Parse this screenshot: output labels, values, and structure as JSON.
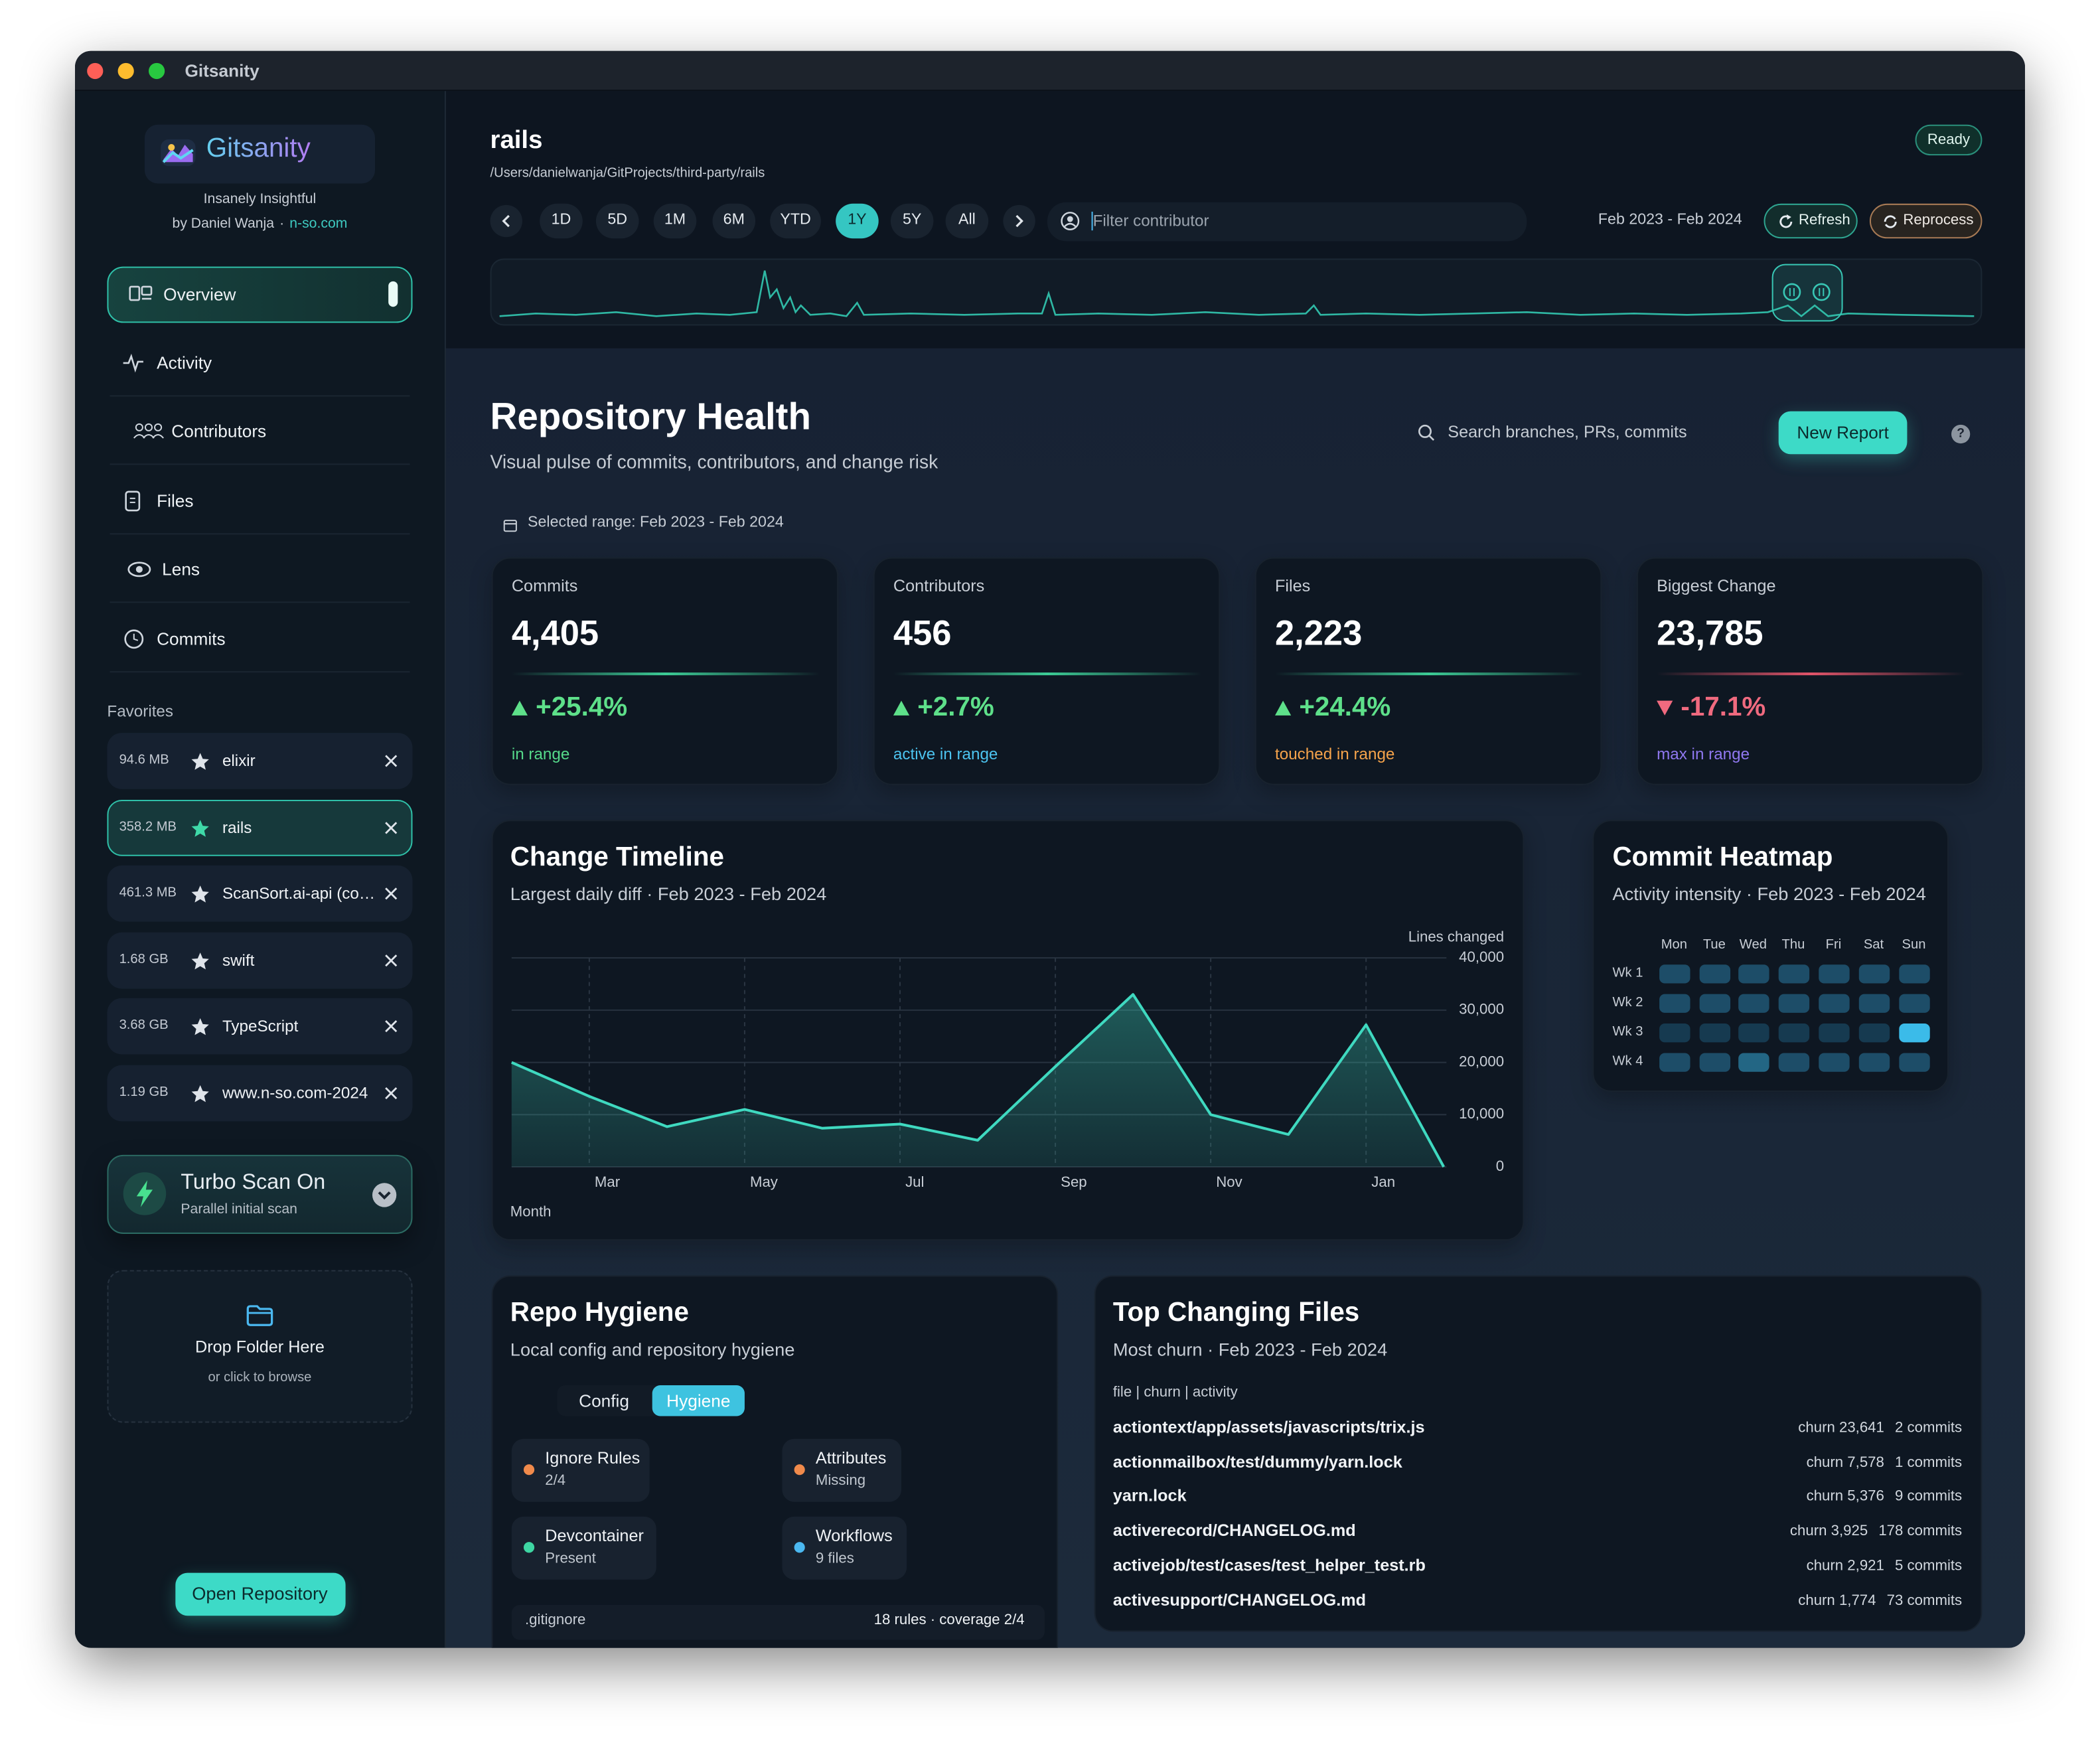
{
  "window": {
    "title": "Gitsanity"
  },
  "sidebar": {
    "brand": "Gitsanity",
    "tagline": "Insanely Insightful",
    "author": "by Daniel Wanja",
    "separator": "·",
    "site": "n-so.com",
    "nav": [
      "Overview",
      "Activity",
      "Contributors",
      "Files",
      "Lens",
      "Commits"
    ],
    "active_nav": 0,
    "favorites_title": "Favorites",
    "favorites": [
      {
        "size": "94.6 MB",
        "name": "elixir"
      },
      {
        "size": "358.2 MB",
        "name": "rails"
      },
      {
        "size": "461.3 MB",
        "name": "ScanSort.ai-api (co…"
      },
      {
        "size": "1.68 GB",
        "name": "swift"
      },
      {
        "size": "3.68 GB",
        "name": "TypeScript"
      },
      {
        "size": "1.19 GB",
        "name": "www.n-so.com-2024"
      }
    ],
    "active_favorite": 1,
    "turbo": {
      "title": "Turbo Scan On",
      "subtitle": "Parallel initial scan"
    },
    "drop": {
      "title": "Drop Folder Here",
      "subtitle": "or click to browse"
    },
    "open_button": "Open Repository"
  },
  "header": {
    "repo": "rails",
    "path": "/Users/danielwanja/GitProjects/third-party/rails",
    "status": "Ready",
    "ranges": [
      "1D",
      "5D",
      "1M",
      "6M",
      "YTD",
      "1Y",
      "5Y",
      "All"
    ],
    "active_range": 5,
    "filter_placeholder": "Filter contributor",
    "range": "Feb 2023 - Feb 2024",
    "refresh": "Refresh",
    "reprocess": "Reprocess"
  },
  "page": {
    "title": "Repository Health",
    "subtitle": "Visual pulse of commits, contributors, and change risk",
    "search": "Search branches, PRs, commits",
    "new_report": "New Report",
    "help": "?",
    "selected_range": "Selected range: Feb 2023 - Feb 2024"
  },
  "stats": [
    {
      "label": "Commits",
      "value": "4,405",
      "change": "+25.4%",
      "trend": "up",
      "note": "in range",
      "note_color": "#55d98a"
    },
    {
      "label": "Contributors",
      "value": "456",
      "change": "+2.7%",
      "trend": "up",
      "note": "active in range",
      "note_color": "#4cc3ef"
    },
    {
      "label": "Files",
      "value": "2,223",
      "change": "+24.4%",
      "trend": "up",
      "note": "touched in range",
      "note_color": "#f5a34b"
    },
    {
      "label": "Biggest Change",
      "value": "23,785",
      "change": "-17.1%",
      "trend": "down",
      "note": "max in range",
      "note_color": "#8f78f0"
    }
  ],
  "chart_data": {
    "type": "area",
    "title": "Change Timeline",
    "subtitle": "Largest daily diff · Feb 2023 - Feb 2024",
    "y_label": "Lines changed",
    "x_label": "Month",
    "categories": [
      null,
      "Mar",
      null,
      "May",
      null,
      "Jul",
      null,
      "Sep",
      null,
      "Nov",
      null,
      "Jan",
      null
    ],
    "values": [
      20000,
      13500,
      7700,
      11000,
      7400,
      8200,
      5100,
      19200,
      33000,
      10000,
      6200,
      27200,
      0
    ],
    "color": "#3fd9c0",
    "ylim": [
      0,
      40000
    ],
    "yticks": [
      0,
      {
        "value": 10000,
        "label": "10,000"
      },
      {
        "value": 20000,
        "label": "20,000"
      },
      {
        "value": 30000,
        "label": "30,000"
      },
      {
        "value": 40000,
        "label": "40,000"
      }
    ],
    "grid": true
  },
  "heatmap": {
    "title": "Commit Heatmap",
    "subtitle": "Activity intensity · Feb 2023 - Feb 2024",
    "columns": [
      "Mon",
      "Tue",
      "Wed",
      "Thu",
      "Fri",
      "Sat",
      "Sun"
    ],
    "rows": [
      "Wk 1",
      "Wk 2",
      "Wk 3",
      "Wk 4"
    ],
    "values": [
      [
        2,
        2,
        2,
        2,
        2,
        2,
        2
      ],
      [
        2,
        2,
        2,
        2,
        2,
        2,
        2
      ],
      [
        1,
        1,
        1,
        1,
        1,
        1,
        4
      ],
      [
        2,
        2,
        3,
        2,
        2,
        2,
        2
      ]
    ],
    "palette": [
      "#163a50",
      "#1d4d68",
      "#236684",
      "#3bbbe9"
    ]
  },
  "hygiene": {
    "title": "Repo Hygiene",
    "subtitle": "Local config and repository hygiene",
    "tabs": [
      "Config",
      "Hygiene"
    ],
    "active_tab": 1,
    "items": [
      {
        "name": "Ignore Rules",
        "detail": "2/4",
        "color": "#f08a4b"
      },
      {
        "name": "Attributes",
        "detail": "Missing",
        "color": "#f08a4b"
      },
      {
        "name": "Devcontainer",
        "detail": "Present",
        "color": "#3ed6a3"
      },
      {
        "name": "Workflows",
        "detail": "9 files",
        "color": "#4bb8f0"
      }
    ],
    "footer": {
      "file": ".gitignore",
      "summary": "18 rules · coverage 2/4"
    }
  },
  "top_files": {
    "title": "Top Changing Files",
    "subtitle": "Most churn · Feb 2023 - Feb 2024",
    "columns": "file | churn | activity",
    "files": [
      {
        "path": "actiontext/app/assets/javascripts/trix.js",
        "churn": "churn 23,641",
        "activity": "2 commits"
      },
      {
        "path": "actionmailbox/test/dummy/yarn.lock",
        "churn": "churn 7,578",
        "activity": "1 commits"
      },
      {
        "path": "yarn.lock",
        "churn": "churn 5,376",
        "activity": "9 commits"
      },
      {
        "path": "activerecord/CHANGELOG.md",
        "churn": "churn 3,925",
        "activity": "178 commits"
      },
      {
        "path": "activejob/test/cases/test_helper_test.rb",
        "churn": "churn 2,921",
        "activity": "5 commits"
      },
      {
        "path": "activesupport/CHANGELOG.md",
        "churn": "churn 1,774",
        "activity": "73 commits"
      }
    ]
  }
}
